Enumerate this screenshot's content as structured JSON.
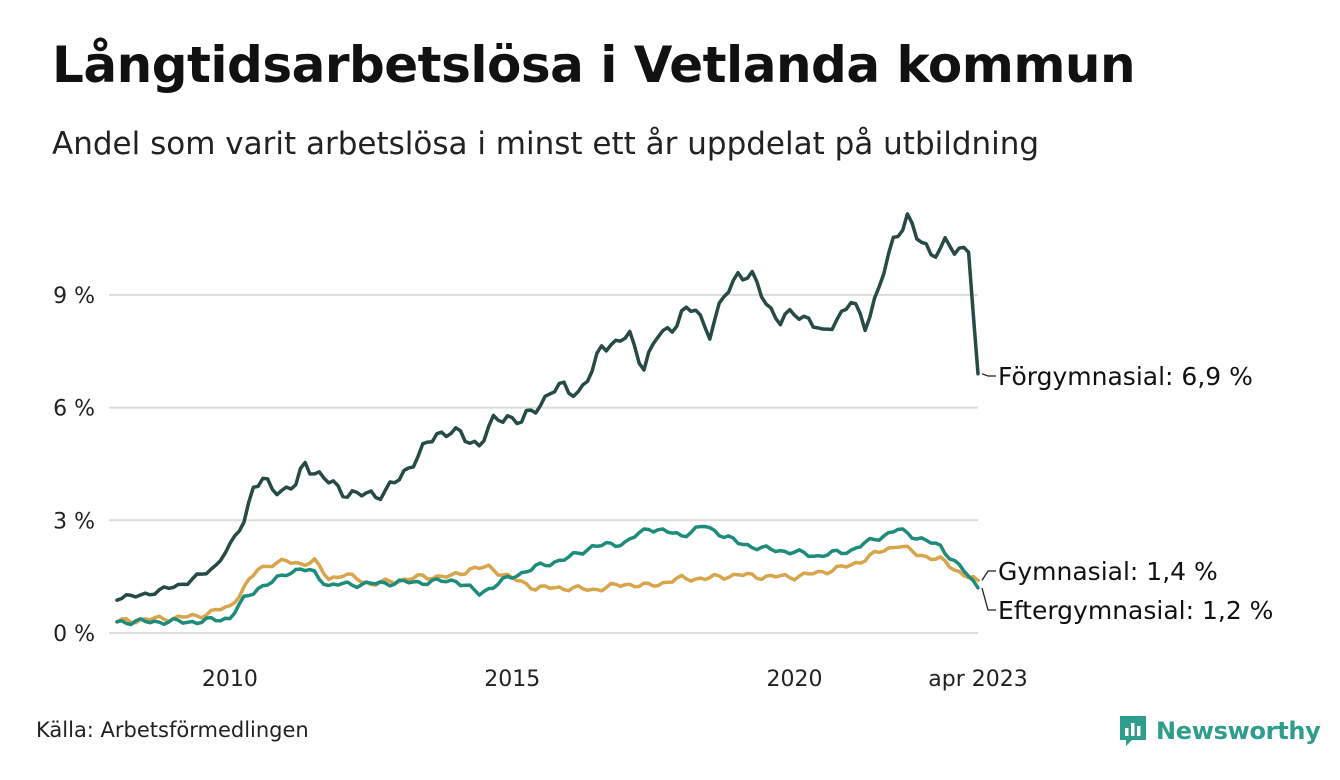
{
  "header": {
    "title": "Långtidsarbetslösa i Vetlanda kommun",
    "subtitle": "Andel som varit arbetslösa i minst ett år uppdelat på utbildning"
  },
  "footer": {
    "source": "Källa: Arbetsförmedlingen",
    "brand": "Newsworthy"
  },
  "icons": {
    "brand_logo": "newsworthy-logo-icon"
  },
  "chart_data": {
    "type": "line",
    "x_unit": "month",
    "x_start": "2008-01",
    "x_end": "2023-04",
    "xlim": [
      "2008-01",
      "2023-04"
    ],
    "ylim": [
      0,
      11.5
    ],
    "grid": true,
    "x_ticks": [
      {
        "date": "2010-01",
        "label": "2010"
      },
      {
        "date": "2015-01",
        "label": "2015"
      },
      {
        "date": "2020-01",
        "label": "2020"
      },
      {
        "date": "2023-04",
        "label": "apr 2023"
      }
    ],
    "y_ticks": [
      {
        "value": 0,
        "label": "0 %"
      },
      {
        "value": 3,
        "label": "3 %"
      },
      {
        "value": 6,
        "label": "6 %"
      },
      {
        "value": 9,
        "label": "9 %"
      }
    ],
    "series": [
      {
        "name": "Förgymnasial",
        "label": "Förgymnasial: 6,9 %",
        "color": "#264a44",
        "anchors": [
          [
            "2008-01",
            0.95
          ],
          [
            "2008-04",
            0.95
          ],
          [
            "2008-07",
            1.05
          ],
          [
            "2008-10",
            1.1
          ],
          [
            "2009-01",
            1.25
          ],
          [
            "2009-04",
            1.35
          ],
          [
            "2009-07",
            1.55
          ],
          [
            "2009-10",
            1.8
          ],
          [
            "2010-01",
            2.3
          ],
          [
            "2010-04",
            3.0
          ],
          [
            "2010-06",
            3.9
          ],
          [
            "2010-08",
            4.0
          ],
          [
            "2010-12",
            3.8
          ],
          [
            "2011-03",
            3.9
          ],
          [
            "2011-05",
            4.55
          ],
          [
            "2011-07",
            4.3
          ],
          [
            "2011-10",
            4.0
          ],
          [
            "2012-01",
            3.8
          ],
          [
            "2012-04",
            3.65
          ],
          [
            "2012-07",
            3.7
          ],
          [
            "2012-10",
            3.75
          ],
          [
            "2013-01",
            4.1
          ],
          [
            "2013-04",
            4.6
          ],
          [
            "2013-07",
            5.0
          ],
          [
            "2013-09",
            5.3
          ],
          [
            "2013-12",
            5.4
          ],
          [
            "2014-03",
            5.15
          ],
          [
            "2014-06",
            5.05
          ],
          [
            "2014-09",
            5.6
          ],
          [
            "2014-12",
            5.8
          ],
          [
            "2015-03",
            5.6
          ],
          [
            "2015-06",
            6.0
          ],
          [
            "2015-09",
            6.4
          ],
          [
            "2015-12",
            6.55
          ],
          [
            "2016-03",
            6.4
          ],
          [
            "2016-06",
            6.9
          ],
          [
            "2016-08",
            7.7
          ],
          [
            "2016-11",
            7.7
          ],
          [
            "2017-02",
            7.9
          ],
          [
            "2017-05",
            7.1
          ],
          [
            "2017-08",
            7.9
          ],
          [
            "2017-11",
            8.15
          ],
          [
            "2018-01",
            8.5
          ],
          [
            "2018-04",
            8.6
          ],
          [
            "2018-07",
            8.0
          ],
          [
            "2018-10",
            8.9
          ],
          [
            "2019-01",
            9.6
          ],
          [
            "2019-04",
            9.45
          ],
          [
            "2019-07",
            8.8
          ],
          [
            "2019-10",
            8.3
          ],
          [
            "2020-01",
            8.5
          ],
          [
            "2020-04",
            8.4
          ],
          [
            "2020-07",
            7.9
          ],
          [
            "2020-10",
            8.4
          ],
          [
            "2021-01",
            8.8
          ],
          [
            "2021-04",
            8.2
          ],
          [
            "2021-07",
            9.2
          ],
          [
            "2021-10",
            10.4
          ],
          [
            "2022-01",
            11.15
          ],
          [
            "2022-03",
            10.5
          ],
          [
            "2022-06",
            10.1
          ],
          [
            "2022-09",
            10.4
          ],
          [
            "2022-11",
            10.1
          ],
          [
            "2023-02",
            10.3
          ],
          [
            "2023-04",
            6.9
          ],
          [
            "2023-06",
            6.9
          ]
        ]
      },
      {
        "name": "Gymnasial",
        "label": "Gymnasial: 1,4 %",
        "color": "#d8a44c",
        "anchors": [
          [
            "2008-01",
            0.3
          ],
          [
            "2008-06",
            0.35
          ],
          [
            "2009-01",
            0.4
          ],
          [
            "2009-06",
            0.45
          ],
          [
            "2010-01",
            0.7
          ],
          [
            "2010-04",
            1.2
          ],
          [
            "2010-07",
            1.7
          ],
          [
            "2010-10",
            1.85
          ],
          [
            "2011-01",
            1.9
          ],
          [
            "2011-04",
            1.85
          ],
          [
            "2011-07",
            1.9
          ],
          [
            "2011-10",
            1.45
          ],
          [
            "2012-01",
            1.55
          ],
          [
            "2012-04",
            1.45
          ],
          [
            "2012-07",
            1.3
          ],
          [
            "2012-10",
            1.35
          ],
          [
            "2013-01",
            1.4
          ],
          [
            "2013-06",
            1.5
          ],
          [
            "2013-12",
            1.5
          ],
          [
            "2014-04",
            1.7
          ],
          [
            "2014-08",
            1.75
          ],
          [
            "2015-01",
            1.45
          ],
          [
            "2015-06",
            1.2
          ],
          [
            "2016-01",
            1.2
          ],
          [
            "2016-06",
            1.15
          ],
          [
            "2017-01",
            1.3
          ],
          [
            "2017-06",
            1.25
          ],
          [
            "2018-01",
            1.45
          ],
          [
            "2018-06",
            1.45
          ],
          [
            "2019-01",
            1.55
          ],
          [
            "2019-06",
            1.5
          ],
          [
            "2020-01",
            1.5
          ],
          [
            "2020-06",
            1.6
          ],
          [
            "2021-01",
            1.8
          ],
          [
            "2021-06",
            2.1
          ],
          [
            "2021-11",
            2.35
          ],
          [
            "2022-03",
            2.1
          ],
          [
            "2022-08",
            1.95
          ],
          [
            "2023-01",
            1.55
          ],
          [
            "2023-04",
            1.4
          ],
          [
            "2023-06",
            1.4
          ]
        ]
      },
      {
        "name": "Eftergymnasial",
        "label": "Eftergymnasial: 1,2 %",
        "color": "#1e8c7a",
        "anchors": [
          [
            "2008-01",
            0.3
          ],
          [
            "2008-06",
            0.3
          ],
          [
            "2009-01",
            0.3
          ],
          [
            "2009-06",
            0.3
          ],
          [
            "2010-01",
            0.4
          ],
          [
            "2010-04",
            0.9
          ],
          [
            "2010-07",
            1.2
          ],
          [
            "2010-10",
            1.35
          ],
          [
            "2011-01",
            1.6
          ],
          [
            "2011-04",
            1.7
          ],
          [
            "2011-07",
            1.6
          ],
          [
            "2011-10",
            1.25
          ],
          [
            "2012-01",
            1.3
          ],
          [
            "2012-06",
            1.3
          ],
          [
            "2013-01",
            1.35
          ],
          [
            "2013-06",
            1.35
          ],
          [
            "2014-01",
            1.4
          ],
          [
            "2014-06",
            1.05
          ],
          [
            "2014-12",
            1.45
          ],
          [
            "2015-06",
            1.75
          ],
          [
            "2016-01",
            2.0
          ],
          [
            "2016-06",
            2.3
          ],
          [
            "2017-01",
            2.4
          ],
          [
            "2017-06",
            2.8
          ],
          [
            "2018-01",
            2.6
          ],
          [
            "2018-06",
            2.85
          ],
          [
            "2019-01",
            2.4
          ],
          [
            "2019-06",
            2.25
          ],
          [
            "2020-01",
            2.15
          ],
          [
            "2020-06",
            2.05
          ],
          [
            "2021-01",
            2.2
          ],
          [
            "2021-06",
            2.5
          ],
          [
            "2021-11",
            2.75
          ],
          [
            "2022-03",
            2.55
          ],
          [
            "2022-08",
            2.3
          ],
          [
            "2023-01",
            1.65
          ],
          [
            "2023-04",
            1.2
          ],
          [
            "2023-06",
            1.2
          ]
        ]
      }
    ]
  }
}
